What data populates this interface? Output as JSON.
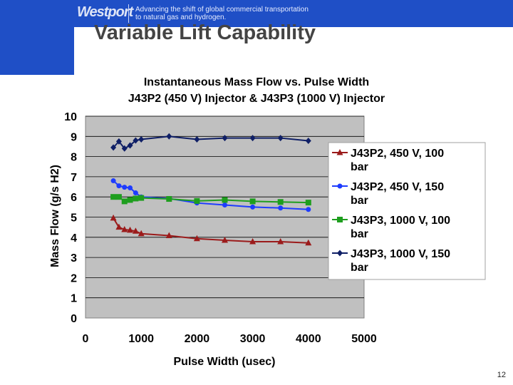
{
  "header": {
    "logo": "Westport",
    "tagline_line1": "Advancing the shift of global commercial transportation",
    "tagline_line2": "to natural gas and hydrogen."
  },
  "slide": {
    "title": "Variable Lift Capability",
    "page_number": "12"
  },
  "colors": {
    "brand": "#1f4fc6",
    "plot_bg": "#c0c0c0",
    "grid": "#000000"
  },
  "chart_data": {
    "type": "line",
    "title": "Instantaneous Mass Flow vs. Pulse Width",
    "subtitle": "J43P2 (450 V) Injector & J43P3 (1000 V) Injector",
    "xlabel": "Pulse Width (usec)",
    "ylabel": "Mass Flow (g/s H2)",
    "xlim": [
      0,
      5000
    ],
    "ylim": [
      0,
      10
    ],
    "xticks": [
      0,
      1000,
      2000,
      3000,
      4000,
      5000
    ],
    "yticks": [
      0,
      1,
      2,
      3,
      4,
      5,
      6,
      7,
      8,
      9,
      10
    ],
    "grid": true,
    "legend_position": "right",
    "series": [
      {
        "name_line1": "J43P2, 450 V, 100",
        "name_line2": "bar",
        "color": "#9b1b1b",
        "marker": "triangle",
        "x": [
          500,
          600,
          700,
          800,
          900,
          1000,
          1500,
          2000,
          2500,
          3000,
          3500,
          4000
        ],
        "y": [
          4.95,
          4.5,
          4.38,
          4.35,
          4.3,
          4.18,
          4.08,
          3.93,
          3.85,
          3.78,
          3.78,
          3.72
        ]
      },
      {
        "name_line1": "J43P2, 450 V, 150",
        "name_line2": "bar",
        "color": "#1e3cff",
        "marker": "circle",
        "x": [
          500,
          600,
          700,
          800,
          900,
          1000,
          1500,
          2000,
          2500,
          3000,
          3500,
          4000
        ],
        "y": [
          6.8,
          6.55,
          6.48,
          6.45,
          6.2,
          6.0,
          5.92,
          5.7,
          5.6,
          5.5,
          5.45,
          5.38
        ]
      },
      {
        "name_line1": "J43P3, 1000 V, 100",
        "name_line2": "bar",
        "color": "#1e9e1e",
        "marker": "square",
        "x": [
          500,
          600,
          700,
          800,
          900,
          1000,
          1500,
          2000,
          2500,
          3000,
          3500,
          4000
        ],
        "y": [
          6.0,
          6.0,
          5.78,
          5.85,
          5.92,
          5.95,
          5.9,
          5.8,
          5.85,
          5.78,
          5.75,
          5.72
        ]
      },
      {
        "name_line1": "J43P3, 1000 V, 150",
        "name_line2": "bar",
        "color": "#0f1f66",
        "marker": "diamond",
        "x": [
          500,
          600,
          700,
          800,
          900,
          1000,
          1500,
          2000,
          2500,
          3000,
          3500,
          4000
        ],
        "y": [
          8.45,
          8.75,
          8.4,
          8.55,
          8.8,
          8.85,
          9.0,
          8.85,
          8.92,
          8.92,
          8.92,
          8.78
        ]
      }
    ]
  }
}
